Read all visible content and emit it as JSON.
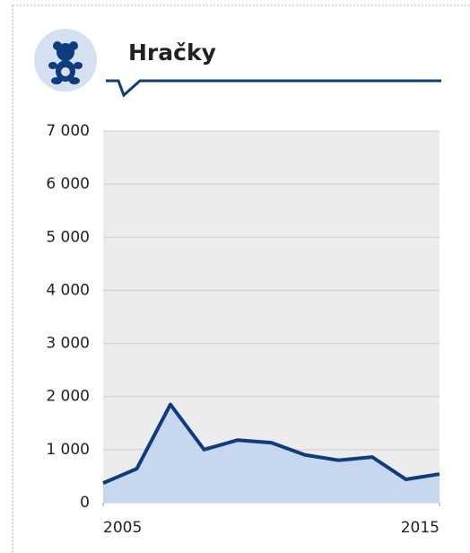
{
  "chart_data": {
    "type": "area",
    "title": "Hračky",
    "x": [
      2005,
      2006,
      2007,
      2008,
      2009,
      2010,
      2011,
      2012,
      2013,
      2014,
      2015
    ],
    "values": [
      370,
      640,
      1850,
      1000,
      1180,
      1130,
      900,
      800,
      860,
      440,
      540
    ],
    "color": "#0d3c7f",
    "area_color": "#c6d7ee",
    "xlim": [
      2005,
      2015
    ],
    "xticks": [
      2005,
      2015
    ],
    "ylim": [
      0,
      7000
    ],
    "yticks": [
      0,
      {
        "value": 1000,
        "label": "1 000"
      },
      {
        "value": 2000,
        "label": "2 000"
      },
      {
        "value": 3000,
        "label": "3 000"
      },
      {
        "value": 4000,
        "label": "4 000"
      },
      {
        "value": 5000,
        "label": "5 000"
      },
      {
        "value": 6000,
        "label": "6 000"
      },
      {
        "value": 7000,
        "label": "7 000"
      }
    ],
    "grid": true
  }
}
